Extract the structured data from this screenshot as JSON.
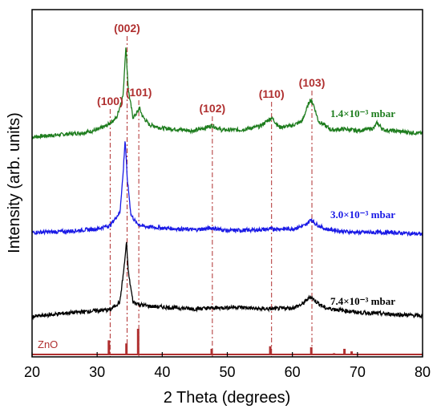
{
  "chart_data": {
    "type": "line",
    "xlabel": "2 Theta (degrees)",
    "ylabel": "Intensity (arb. units)",
    "xlim": [
      20,
      80
    ],
    "xticks": [
      20,
      30,
      40,
      50,
      60,
      70,
      80
    ],
    "peak_markers": [
      {
        "label": "(100)",
        "x": 32.0
      },
      {
        "label": "(002)",
        "x": 34.6
      },
      {
        "label": "(101)",
        "x": 36.4
      },
      {
        "label": "(102)",
        "x": 47.7
      },
      {
        "label": "(110)",
        "x": 56.8
      },
      {
        "label": "(103)",
        "x": 63.0
      }
    ],
    "series": [
      {
        "name": "1.4×10⁻³ mbar",
        "color": "#1e7d1e",
        "points": [
          [
            20,
            0.2
          ],
          [
            25,
            0.5
          ],
          [
            28,
            0.7
          ],
          [
            30,
            1.0
          ],
          [
            31.5,
            1.5
          ],
          [
            32,
            1.8
          ],
          [
            33,
            2.4
          ],
          [
            34,
            5.0
          ],
          [
            34.4,
            10.5
          ],
          [
            34.8,
            5.5
          ],
          [
            35.5,
            2.4
          ],
          [
            36.2,
            3.0
          ],
          [
            36.5,
            3.5
          ],
          [
            37,
            2.5
          ],
          [
            38,
            1.6
          ],
          [
            40,
            1.2
          ],
          [
            45,
            0.9
          ],
          [
            47.7,
            1.5
          ],
          [
            49,
            1.0
          ],
          [
            52,
            1.0
          ],
          [
            55,
            1.4
          ],
          [
            56.8,
            2.4
          ],
          [
            58,
            1.3
          ],
          [
            60,
            1.5
          ],
          [
            61.5,
            2.0
          ],
          [
            62.7,
            4.4
          ],
          [
            63.2,
            4.0
          ],
          [
            64,
            2.0
          ],
          [
            66,
            1.0
          ],
          [
            68,
            1.1
          ],
          [
            70,
            0.9
          ],
          [
            72.5,
            1.2
          ],
          [
            73,
            1.8
          ],
          [
            74,
            1.0
          ],
          [
            80,
            0.6
          ]
        ]
      },
      {
        "name": "3.0×10⁻³ mbar",
        "color": "#1a1ae6",
        "points": [
          [
            20,
            0.2
          ],
          [
            25,
            0.3
          ],
          [
            30,
            0.6
          ],
          [
            32,
            1.0
          ],
          [
            33.5,
            2.5
          ],
          [
            34.0,
            7.0
          ],
          [
            34.3,
            10.8
          ],
          [
            34.6,
            6.5
          ],
          [
            35.2,
            2.2
          ],
          [
            36,
            1.3
          ],
          [
            37,
            0.9
          ],
          [
            40,
            0.7
          ],
          [
            45,
            0.5
          ],
          [
            47.7,
            0.7
          ],
          [
            50,
            0.4
          ],
          [
            55,
            0.5
          ],
          [
            56.8,
            0.6
          ],
          [
            60,
            0.6
          ],
          [
            62,
            1.0
          ],
          [
            62.9,
            1.7
          ],
          [
            63.5,
            1.2
          ],
          [
            65,
            0.6
          ],
          [
            68,
            0.3
          ],
          [
            70,
            0.2
          ],
          [
            75,
            0.2
          ],
          [
            80,
            0.0
          ]
        ]
      },
      {
        "name": "7.4×10⁻³ mbar",
        "color": "#000000",
        "points": [
          [
            20,
            0.0
          ],
          [
            25,
            0.4
          ],
          [
            30,
            0.7
          ],
          [
            32,
            0.8
          ],
          [
            33.5,
            1.7
          ],
          [
            34.2,
            6.0
          ],
          [
            34.5,
            8.5
          ],
          [
            34.8,
            5.0
          ],
          [
            35.5,
            1.7
          ],
          [
            36.5,
            1.4
          ],
          [
            38,
            1.2
          ],
          [
            40,
            1.1
          ],
          [
            45,
            0.9
          ],
          [
            48,
            1.0
          ],
          [
            51.5,
            1.1
          ],
          [
            55,
            0.9
          ],
          [
            57,
            0.9
          ],
          [
            60,
            1.0
          ],
          [
            61.5,
            1.4
          ],
          [
            62.8,
            2.3
          ],
          [
            63.5,
            1.8
          ],
          [
            65,
            1.0
          ],
          [
            68,
            0.7
          ],
          [
            70,
            0.5
          ],
          [
            75,
            0.3
          ],
          [
            80,
            0.1
          ]
        ]
      }
    ],
    "reference": {
      "name": "ZnO",
      "color": "#b03030",
      "bars": [
        [
          31.8,
          0.55
        ],
        [
          34.5,
          0.43
        ],
        [
          36.3,
          1.0
        ],
        [
          47.6,
          0.22
        ],
        [
          56.6,
          0.32
        ],
        [
          62.9,
          0.28
        ],
        [
          66.4,
          0.05
        ],
        [
          68.0,
          0.22
        ],
        [
          69.1,
          0.12
        ]
      ]
    }
  }
}
